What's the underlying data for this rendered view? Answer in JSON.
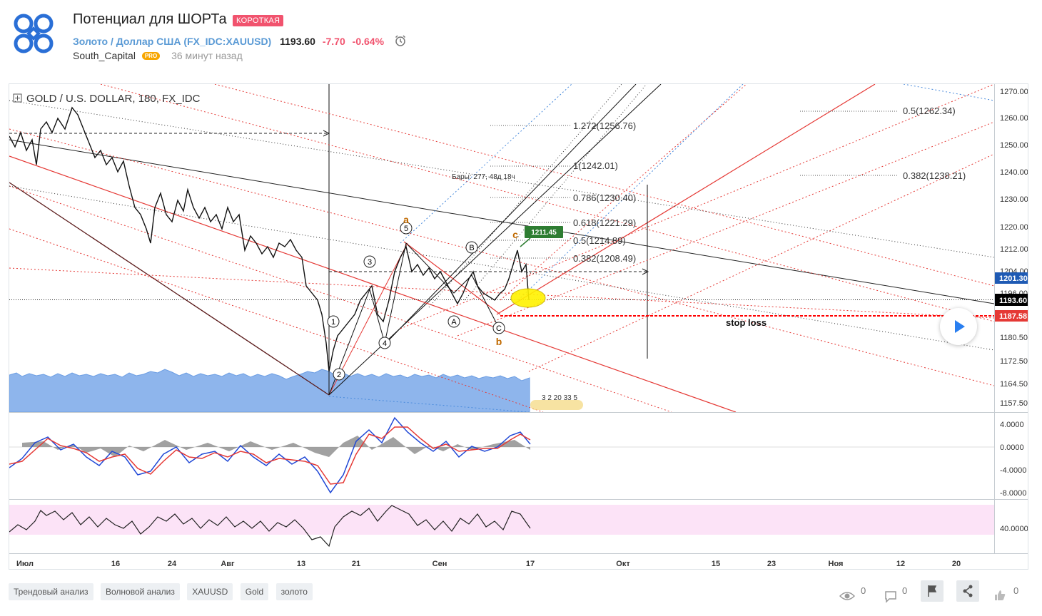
{
  "header": {
    "title": "Потенциал для ШОРТа",
    "badge": "КОРОТКАЯ",
    "symbol_link": "Золото / Доллар США",
    "symbol_code": "(FX_IDC:XAUUSD)",
    "price": "1193.60",
    "change": "-7.70",
    "change_pct": "-0.64%",
    "author": "South_Capital",
    "pro_badge": "PRO",
    "time_ago": "36 минут назад"
  },
  "chart": {
    "legend": "GOLD / U.S. DOLLAR, 180, FX_IDC",
    "price_axis": [
      "1270.00",
      "1260.00",
      "1250.00",
      "1240.00",
      "1230.00",
      "1220.00",
      "1212.00",
      "1204.00",
      "1196.00",
      "1180.50",
      "1172.50",
      "1164.50",
      "1157.50"
    ],
    "price_tags": {
      "last": "1201.30",
      "current": "1193.60",
      "stop": "1187.58",
      "target": "1211.45"
    },
    "macd_axis": [
      "4.0000",
      "0.0000",
      "-4.0000",
      "-8.0000"
    ],
    "rsi_axis": [
      "40.0000"
    ],
    "time_axis": [
      "Июл",
      "16",
      "24",
      "Авг",
      "13",
      "21",
      "Сен",
      "17",
      "Окт",
      "15",
      "23",
      "Ноя",
      "12",
      "20"
    ],
    "fib_left": [
      "1.272(1256.76)",
      "1(1242.01)",
      "0.786(1230.40)",
      "0.618(1221.29)",
      "0.5(1214.89)",
      "0.382(1208.49)"
    ],
    "fib_right": [
      "0.5(1262.34)",
      "0.382(1238.21)"
    ],
    "bars_label": "Бары: 277, 48д 18ч",
    "stop_loss_label": "stop loss",
    "wave_circles": [
      "1",
      "2",
      "3",
      "4",
      "5",
      "A",
      "B",
      "C"
    ],
    "wave_letters": [
      "a",
      "b",
      "c"
    ],
    "volume_label": "3 2 20 33 5"
  },
  "tags": [
    "Трендовый анализ",
    "Волновой анализ",
    "XAUUSD",
    "Gold",
    "золото"
  ],
  "footer": {
    "views": "0",
    "comments": "0",
    "likes": "0"
  },
  "colors": {
    "accent": "#5a9ad5",
    "negative": "#f1536e",
    "pro": "#f7a600",
    "stop": "#ff0000",
    "target": "#2e7d32"
  }
}
